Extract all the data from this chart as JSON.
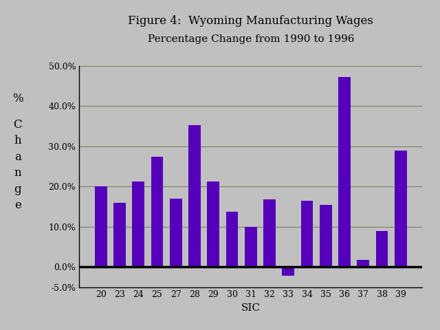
{
  "title_line1": "Figure 4:  Wyoming Manufacturing Wages",
  "title_line2": "Percentage Change from 1990 to 1996",
  "categories": [
    "20",
    "23",
    "24",
    "25",
    "27",
    "28",
    "29",
    "30",
    "31",
    "32",
    "33",
    "34",
    "35",
    "36",
    "37",
    "38",
    "39"
  ],
  "values": [
    0.2,
    0.16,
    0.213,
    0.275,
    0.17,
    0.353,
    0.213,
    0.137,
    0.1,
    0.168,
    -0.022,
    0.165,
    0.155,
    0.473,
    0.018,
    0.09,
    0.29
  ],
  "bar_color": "#5500BB",
  "background_color": "#C0C0C0",
  "plot_bg_color": "#C0C0C0",
  "xlabel": "SIC",
  "ylabel_top": "%",
  "ylabel_bottom": "C\nh\na\nn\ng\ne",
  "ylim": [
    -0.05,
    0.5
  ],
  "yticks": [
    -0.05,
    0.0,
    0.1,
    0.2,
    0.3,
    0.4,
    0.5
  ],
  "ytick_labels": [
    "-5.0%",
    "0.0%",
    "10.0%",
    "20.0%",
    "30.0%",
    "40.0%",
    "50.0%"
  ],
  "grid_color": "#808060",
  "spine_color": "#000000",
  "title_fontsize": 12,
  "subtitle_fontsize": 11,
  "tick_fontsize": 9,
  "xlabel_fontsize": 11
}
